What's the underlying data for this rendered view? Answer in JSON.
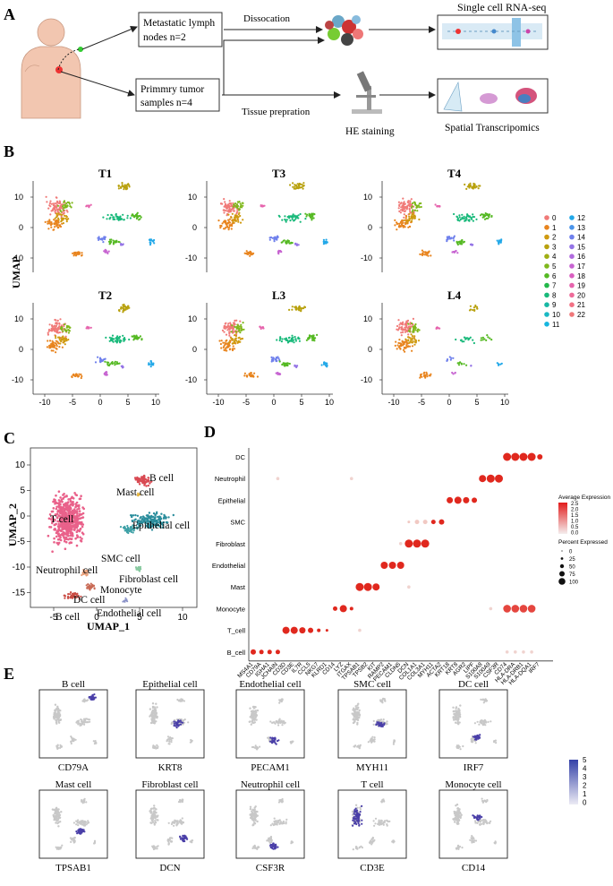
{
  "panels": {
    "a": "A",
    "b": "B",
    "c": "C",
    "d": "D",
    "e": "E"
  },
  "panel_a": {
    "box_metastatic": [
      "Metastatic lymph",
      "nodes n=2"
    ],
    "box_primary": [
      "Primmry tumor",
      "samples n=4"
    ],
    "arrow_dissociation": "Dissocation",
    "arrow_tissue": "Tissue prepration",
    "he_staining": "HE staining",
    "single_cell": "Single cell RNA-seq",
    "spatial": "Spatial Transcripomics"
  },
  "panel_b": {
    "samples": [
      "T1",
      "T3",
      "T4",
      "T2",
      "L3",
      "L4"
    ],
    "ylabel": "UMAP",
    "y_ticks": [
      "10",
      "0",
      "-10"
    ],
    "x_ticks": [
      "-10",
      "-5",
      "0",
      "5",
      "10"
    ],
    "clusters": [
      "0",
      "1",
      "2",
      "3",
      "4",
      "5",
      "6",
      "7",
      "8",
      "9",
      "10",
      "11",
      "12",
      "13",
      "14",
      "15",
      "16",
      "17",
      "18",
      "19",
      "20",
      "21",
      "22"
    ],
    "cluster_colors": [
      "#f07a78",
      "#e8841e",
      "#cf9a10",
      "#b8a10e",
      "#9fae12",
      "#7fb81c",
      "#55b923",
      "#23b84a",
      "#18b97a",
      "#18b8a4",
      "#1ab9c4",
      "#16b6df",
      "#22a8e8",
      "#4a94ea",
      "#6f80ec",
      "#9474e6",
      "#b06bde",
      "#c764d1",
      "#d95fc0",
      "#e664ad",
      "#ee6b99",
      "#f27184",
      "#f0787a"
    ]
  },
  "panel_c": {
    "xlabel": "UMAP_1",
    "ylabel": "UMAP_2",
    "x_ticks": [
      "-5",
      "0",
      "5",
      "10"
    ],
    "y_ticks": [
      "10",
      "5",
      "0",
      "-5",
      "-10",
      "-15"
    ],
    "labels": [
      "B cell",
      "Mast cell",
      "T cell",
      "Epithelial cell",
      "SMC cell",
      "Neutrophil cell",
      "Fibroblast cell",
      "Monocyte",
      "DC cell",
      "B cell",
      "Endothelial cell"
    ]
  },
  "panel_d": {
    "rows": [
      "DC",
      "Neutrophil",
      "Epithelial",
      "SMC",
      "Fibroblast",
      "Endothelial",
      "Mast",
      "Monocyte",
      "T_cell",
      "B_cell"
    ],
    "genes": [
      "MS4A1",
      "CD79A",
      "IGHA1",
      "JCHAIN",
      "CD3D",
      "CD3E",
      "IL7R",
      "CCL5",
      "NKG7",
      "KLRD1",
      "CD14",
      "LYZ",
      "ITGAX",
      "TPSAB1",
      "TPSB2",
      "KIT",
      "RAMP2",
      "PECAM1",
      "CLDN5",
      "DCN",
      "COL1A1",
      "COL3A1",
      "MYH11",
      "ACTA2",
      "KRT18",
      "KRT8",
      "AGR2",
      "LIPF",
      "S100A8",
      "S100A9",
      "CSF3R",
      "CD74",
      "HLA-DRA",
      "HLA-DRB1",
      "HLA-DQA1",
      "IRF7"
    ],
    "legend_expr_title": "Average Expression",
    "legend_expr_ticks": [
      "2.5",
      "2.0",
      "1.5",
      "1.0",
      "0.5",
      "0.0"
    ],
    "legend_pct_title": "Percent Expressed",
    "legend_pct_ticks": [
      "0",
      "25",
      "50",
      "75",
      "100"
    ]
  },
  "panel_e": {
    "titles": [
      "B cell",
      "Epithelial cell",
      "Endothelial cell",
      "SMC cell",
      "DC cell",
      "Mast cell",
      "Fibroblast cell",
      "Neutrophil cell",
      "T cell",
      "Monocyte cell"
    ],
    "genes": [
      "CD79A",
      "KRT8",
      "PECAM1",
      "MYH11",
      "IRF7",
      "TPSAB1",
      "DCN",
      "CSF3R",
      "CD3E",
      "CD14"
    ],
    "scale_ticks": [
      "5",
      "4",
      "3",
      "2",
      "1",
      "0"
    ]
  }
}
